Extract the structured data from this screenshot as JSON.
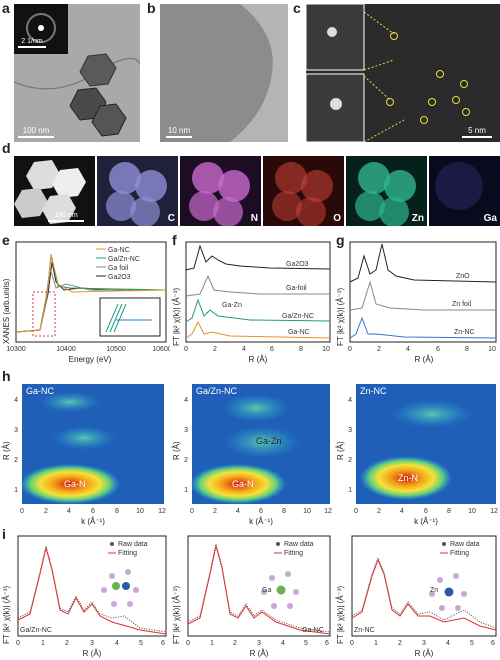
{
  "panel_letters": {
    "a": "a",
    "b": "b",
    "c": "c",
    "d": "d",
    "e": "e",
    "f": "f",
    "g": "g",
    "h": "h",
    "i": "i"
  },
  "tem": {
    "inset_scale": "2 1/nm",
    "a_scale": "100 nm",
    "b_scale": "10 nm",
    "c_scale": "5 nm",
    "d_scale": "100 nm"
  },
  "eds_maps": [
    {
      "element": "C",
      "color": "#8e8ed6"
    },
    {
      "element": "N",
      "color": "#c96ad0"
    },
    {
      "element": "O",
      "color": "#d04438"
    },
    {
      "element": "Zn",
      "color": "#2fb58e"
    },
    {
      "element": "Ga",
      "color": "#3a3a8a"
    }
  ],
  "xanes": {
    "ylabel": "XANES (arb.units)",
    "xlabel": "Energy (eV)",
    "xticks": [
      "10300",
      "10400",
      "10500",
      "10600"
    ],
    "legend": [
      {
        "name": "Ga-NC",
        "color": "#e8902a"
      },
      {
        "name": "Ga/Zn-NC",
        "color": "#1e9e78"
      },
      {
        "name": "Ga foil",
        "color": "#888888"
      },
      {
        "name": "Ga2O3",
        "color": "#222222"
      }
    ]
  },
  "ft_ga": {
    "ylabel": "FT |k² χ(k)| (Å⁻³)",
    "xlabel": "R (Å)",
    "xticks": [
      "0",
      "2",
      "4",
      "6",
      "8",
      "10"
    ],
    "labels": [
      "Ga2O3",
      "Ga-foil",
      "Ga-Zn",
      "Ga/Zn-NC",
      "Ga-NC"
    ]
  },
  "ft_zn": {
    "ylabel": "FT |k² χ(k)| (Å⁻³)",
    "xlabel": "R (Å)",
    "xticks": [
      "0",
      "2",
      "4",
      "6",
      "8",
      "10"
    ],
    "labels": [
      "ZnO",
      "Zn foil",
      "Zn-NC"
    ]
  },
  "wt": [
    {
      "title": "Ga-NC",
      "center": "Ga-N",
      "extra": ""
    },
    {
      "title": "Ga/Zn-NC",
      "center": "Ga-N",
      "extra": "Ga-Zn"
    },
    {
      "title": "Zn-NC",
      "center": "Zn-N",
      "extra": ""
    }
  ],
  "wt_axes": {
    "ylabel": "R (Å)",
    "xlabel": "k (Å⁻¹)",
    "yticks": [
      "1",
      "2",
      "3",
      "4"
    ],
    "xticks": [
      "0",
      "2",
      "4",
      "6",
      "8",
      "10",
      "12"
    ]
  },
  "fits": [
    {
      "name": "Ga/Zn-NC",
      "atom": "Ga"
    },
    {
      "name": "Ga-NC",
      "atom": "Ga"
    },
    {
      "name": "Zn-NC",
      "atom": "Zn"
    }
  ],
  "fit_axes": {
    "ylabel": "FT |k² χ(k)| (Å⁻³)",
    "xlabel": "R (Å)",
    "xticks": [
      "0",
      "1",
      "2",
      "3",
      "4",
      "5",
      "6"
    ],
    "raw": "Raw data",
    "fit": "Fitting"
  }
}
